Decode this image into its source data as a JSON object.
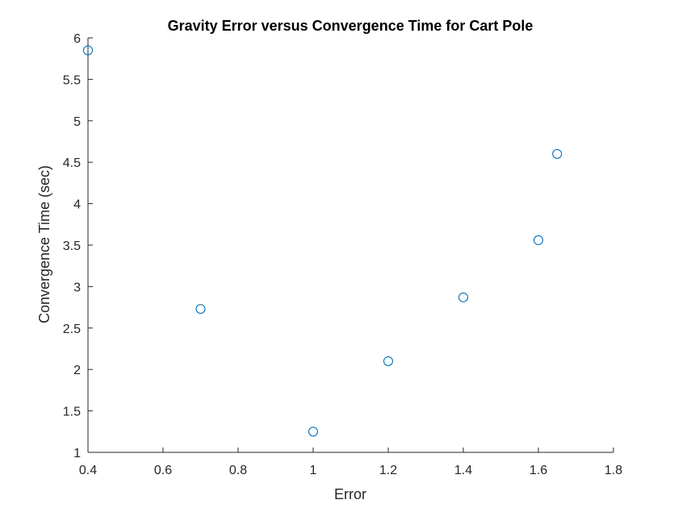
{
  "chart_data": {
    "type": "scatter",
    "title": "Gravity Error versus Convergence Time for Cart Pole",
    "xlabel": "Error",
    "ylabel": "Convergence Time (sec)",
    "xlim": [
      0.4,
      1.8
    ],
    "ylim": [
      1,
      6
    ],
    "xticks": [
      "0.4",
      "0.6",
      "0.8",
      "1",
      "1.2",
      "1.4",
      "1.6",
      "1.8"
    ],
    "yticks": [
      "1",
      "1.5",
      "2",
      "2.5",
      "3",
      "3.5",
      "4",
      "4.5",
      "5",
      "5.5",
      "6"
    ],
    "grid": false,
    "marker": "open-circle",
    "series": [
      {
        "color": "#0072bd",
        "x": [
          0.4,
          0.7,
          1.0,
          1.2,
          1.4,
          1.6,
          1.65
        ],
        "y": [
          5.85,
          2.73,
          1.25,
          2.1,
          2.87,
          3.56,
          4.6
        ]
      }
    ]
  }
}
